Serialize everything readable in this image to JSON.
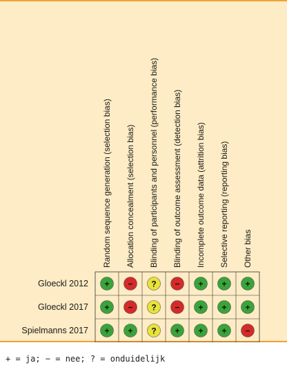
{
  "chart_data": {
    "type": "table",
    "domains": [
      "Random sequence generation (selection bias)",
      "Allocation concealment (selection bias)",
      "Blinding of participants and personnel (performance bias)",
      "Blinding of outcome assessment (detection bias)",
      "Incomplete outcome data (attrition bias)",
      "Selective reporting (reporting bias)",
      "Other bias"
    ],
    "studies": [
      {
        "name": "Gloeckl 2012",
        "ratings": [
          "low",
          "high",
          "unclear",
          "high",
          "low",
          "low",
          "low"
        ]
      },
      {
        "name": "Gloeckl 2017",
        "ratings": [
          "low",
          "high",
          "unclear",
          "high",
          "low",
          "low",
          "low"
        ]
      },
      {
        "name": "Spielmanns 2017",
        "ratings": [
          "low",
          "low",
          "unclear",
          "low",
          "low",
          "low",
          "high"
        ]
      }
    ],
    "symbols": {
      "low": "+",
      "high": "−",
      "unclear": "?"
    },
    "colors": {
      "low": "#3aa33a",
      "high": "#d42a2a",
      "unclear": "#e8e23a"
    }
  },
  "legend": "+ = ja; − = nee; ? = onduidelijk"
}
